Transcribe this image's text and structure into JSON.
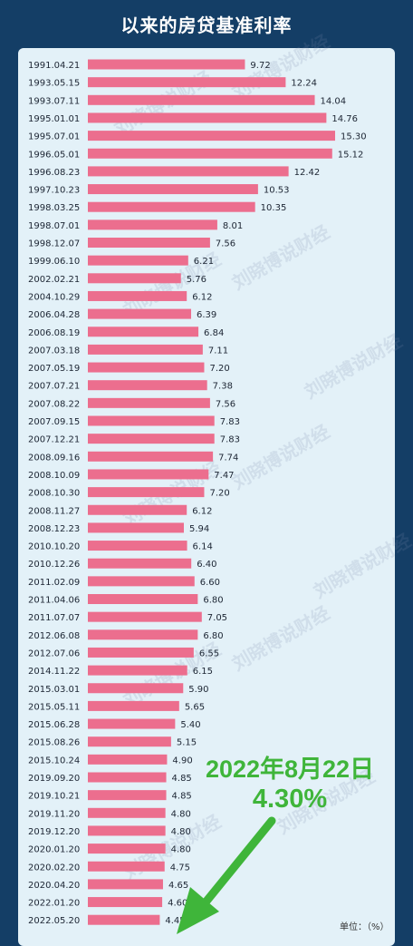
{
  "header": {
    "title": "以来的房贷基准利率"
  },
  "chart_data": {
    "type": "bar",
    "orientation": "horizontal",
    "title": "以来的房贷基准利率",
    "categories": [
      "1991.04.21",
      "1993.05.15",
      "1993.07.11",
      "1995.01.01",
      "1995.07.01",
      "1996.05.01",
      "1996.08.23",
      "1997.10.23",
      "1998.03.25",
      "1998.07.01",
      "1998.12.07",
      "1999.06.10",
      "2002.02.21",
      "2004.10.29",
      "2006.04.28",
      "2006.08.19",
      "2007.03.18",
      "2007.05.19",
      "2007.07.21",
      "2007.08.22",
      "2007.09.15",
      "2007.12.21",
      "2008.09.16",
      "2008.10.09",
      "2008.10.30",
      "2008.11.27",
      "2008.12.23",
      "2010.10.20",
      "2010.12.26",
      "2011.02.09",
      "2011.04.06",
      "2011.07.07",
      "2012.06.08",
      "2012.07.06",
      "2014.11.22",
      "2015.03.01",
      "2015.05.11",
      "2015.06.28",
      "2015.08.26",
      "2015.10.24",
      "2019.09.20",
      "2019.10.21",
      "2019.11.20",
      "2019.12.20",
      "2020.01.20",
      "2020.02.20",
      "2020.04.20",
      "2022.01.20",
      "2022.05.20"
    ],
    "values": [
      9.72,
      12.24,
      14.04,
      14.76,
      15.3,
      15.12,
      12.42,
      10.53,
      10.35,
      8.01,
      7.56,
      6.21,
      5.76,
      6.12,
      6.39,
      6.84,
      7.11,
      7.2,
      7.38,
      7.56,
      7.83,
      7.83,
      7.74,
      7.47,
      7.2,
      6.12,
      5.94,
      6.14,
      6.4,
      6.6,
      6.8,
      7.05,
      6.8,
      6.55,
      6.15,
      5.9,
      5.65,
      5.4,
      5.15,
      4.9,
      4.85,
      4.85,
      4.8,
      4.8,
      4.8,
      4.75,
      4.65,
      4.6,
      4.45
    ],
    "value_labels": [
      "9.72",
      "12.24",
      "14.04",
      "14.76",
      "15.30",
      "15.12",
      "12.42",
      "10.53",
      "10.35",
      "8.01",
      "7.56",
      "6.21",
      "5.76",
      "6.12",
      "6.39",
      "6.84",
      "7.11",
      "7.20",
      "7.38",
      "7.56",
      "7.83",
      "7.83",
      "7.74",
      "7.47",
      "7.20",
      "6.12",
      "5.94",
      "6.14",
      "6.40",
      "6.60",
      "6.80",
      "7.05",
      "6.80",
      "6.55",
      "6.15",
      "5.90",
      "5.65",
      "5.40",
      "5.15",
      "4.90",
      "4.85",
      "4.85",
      "4.80",
      "4.80",
      "4.80",
      "4.75",
      "4.65",
      "4.60",
      "4.45"
    ],
    "xlim": [
      0,
      15.3
    ],
    "grid": false,
    "bar_color": "#ec6e8e",
    "annotation": {
      "date": "2022年8月22日",
      "rate": "4.30%"
    },
    "unit_label": "单位：（%）"
  },
  "watermark": "刘晓博说财经",
  "colors": {
    "background": "#143e66",
    "panel": "#e3f1f8",
    "bar": "#ec6e8e",
    "callout": "#3fb53a",
    "arrow": "#3fb53a"
  }
}
